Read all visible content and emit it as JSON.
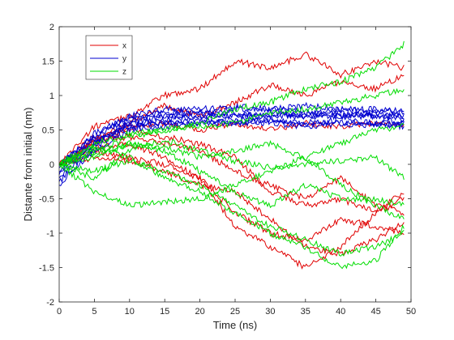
{
  "chart_data": {
    "type": "line",
    "title": "",
    "xlabel": "Time (ns)",
    "ylabel": "Distante from initial (nm)",
    "xlim": [
      0,
      50
    ],
    "ylim": [
      -2,
      2
    ],
    "xticks": [
      "0",
      "5",
      "10",
      "15",
      "20",
      "25",
      "30",
      "35",
      "40",
      "45",
      "50"
    ],
    "yticks": [
      "-2",
      "-1.5",
      "-1",
      "-0.5",
      "0",
      "0.5",
      "1",
      "1.5",
      "2"
    ],
    "grid": false,
    "legend_position": "top-left",
    "legend": [
      {
        "label": "x",
        "color": "#e00000"
      },
      {
        "label": "y",
        "color": "#0000d0"
      },
      {
        "label": "z",
        "color": "#00dd00"
      }
    ],
    "series": [
      {
        "group": "x",
        "color": "#e00000",
        "x": [
          0,
          5,
          10,
          15,
          20,
          25,
          30,
          35,
          40,
          45,
          49
        ],
        "y": [
          0,
          0.55,
          0.7,
          1.0,
          1.1,
          1.5,
          1.4,
          1.6,
          1.3,
          1.5,
          1.4
        ]
      },
      {
        "group": "x",
        "color": "#e00000",
        "x": [
          0,
          5,
          10,
          15,
          20,
          25,
          30,
          35,
          40,
          45,
          49
        ],
        "y": [
          0,
          0.35,
          0.6,
          0.85,
          0.7,
          0.9,
          1.15,
          1.0,
          1.2,
          1.1,
          1.3
        ]
      },
      {
        "group": "x",
        "color": "#e00000",
        "x": [
          0,
          5,
          10,
          15,
          20,
          25,
          30,
          35,
          40,
          45,
          49
        ],
        "y": [
          0,
          0.3,
          0.55,
          0.6,
          0.5,
          0.6,
          0.5,
          0.6,
          0.55,
          0.6,
          0.55
        ]
      },
      {
        "group": "x",
        "color": "#e00000",
        "x": [
          0,
          5,
          10,
          15,
          20,
          25,
          30,
          35,
          40,
          45,
          49
        ],
        "y": [
          0,
          0.2,
          0.1,
          0.0,
          -0.2,
          -0.7,
          -1.0,
          -1.1,
          -0.8,
          -0.9,
          -1.0
        ]
      },
      {
        "group": "x",
        "color": "#e00000",
        "x": [
          0,
          5,
          10,
          15,
          20,
          25,
          30,
          35,
          40,
          45,
          49
        ],
        "y": [
          0,
          0.25,
          0.3,
          0.1,
          -0.2,
          -0.9,
          -1.2,
          -1.5,
          -1.2,
          -0.7,
          -0.5
        ]
      },
      {
        "group": "x",
        "color": "#e00000",
        "x": [
          0,
          5,
          10,
          15,
          20,
          25,
          30,
          35,
          40,
          45,
          49
        ],
        "y": [
          0,
          0.4,
          0.5,
          0.4,
          0.3,
          0.1,
          -0.4,
          -0.6,
          -0.5,
          -0.7,
          -0.4
        ]
      },
      {
        "group": "x",
        "color": "#e00000",
        "x": [
          0,
          5,
          10,
          15,
          20,
          25,
          30,
          35,
          40,
          45,
          49
        ],
        "y": [
          0,
          0.1,
          0.05,
          -0.1,
          -0.3,
          -0.4,
          -0.8,
          -1.2,
          -1.3,
          -1.1,
          -0.85
        ]
      },
      {
        "group": "x",
        "color": "#e00000",
        "x": [
          0,
          5,
          10,
          15,
          20,
          25,
          30,
          35,
          40,
          45,
          49
        ],
        "y": [
          0,
          0.35,
          0.4,
          0.3,
          0.2,
          -0.1,
          -0.3,
          -0.5,
          -0.2,
          -0.6,
          -0.7
        ]
      },
      {
        "group": "y",
        "color": "#0000d0",
        "x": [
          0,
          5,
          10,
          15,
          20,
          25,
          30,
          35,
          40,
          45,
          49
        ],
        "y": [
          0,
          0.4,
          0.7,
          0.8,
          0.8,
          0.85,
          0.8,
          0.85,
          0.8,
          0.8,
          0.75
        ]
      },
      {
        "group": "y",
        "color": "#0000d0",
        "x": [
          0,
          5,
          10,
          15,
          20,
          25,
          30,
          35,
          40,
          45,
          49
        ],
        "y": [
          -0.2,
          0.3,
          0.6,
          0.65,
          0.7,
          0.7,
          0.75,
          0.7,
          0.75,
          0.7,
          0.7
        ]
      },
      {
        "group": "y",
        "color": "#0000d0",
        "x": [
          0,
          5,
          10,
          15,
          20,
          25,
          30,
          35,
          40,
          45,
          49
        ],
        "y": [
          -0.1,
          0.35,
          0.55,
          0.6,
          0.65,
          0.6,
          0.65,
          0.6,
          0.65,
          0.6,
          0.65
        ]
      },
      {
        "group": "y",
        "color": "#0000d0",
        "x": [
          0,
          5,
          10,
          15,
          20,
          25,
          30,
          35,
          40,
          45,
          49
        ],
        "y": [
          -0.25,
          0.2,
          0.5,
          0.55,
          0.6,
          0.6,
          0.6,
          0.55,
          0.6,
          0.55,
          0.6
        ]
      },
      {
        "group": "y",
        "color": "#0000d0",
        "x": [
          0,
          5,
          10,
          15,
          20,
          25,
          30,
          35,
          40,
          45,
          49
        ],
        "y": [
          0,
          0.4,
          0.65,
          0.75,
          0.75,
          0.8,
          0.8,
          0.75,
          0.8,
          0.75,
          0.8
        ]
      },
      {
        "group": "y",
        "color": "#0000d0",
        "x": [
          0,
          5,
          10,
          15,
          20,
          25,
          30,
          35,
          40,
          45,
          49
        ],
        "y": [
          -0.15,
          0.3,
          0.6,
          0.7,
          0.7,
          0.7,
          0.7,
          0.7,
          0.7,
          0.7,
          0.65
        ]
      },
      {
        "group": "y",
        "color": "#0000d0",
        "x": [
          0,
          5,
          10,
          15,
          20,
          25,
          30,
          35,
          40,
          45,
          49
        ],
        "y": [
          -0.05,
          0.45,
          0.7,
          0.7,
          0.75,
          0.75,
          0.7,
          0.75,
          0.7,
          0.75,
          0.7
        ]
      },
      {
        "group": "y",
        "color": "#0000d0",
        "x": [
          0,
          5,
          10,
          15,
          20,
          25,
          30,
          35,
          40,
          45,
          49
        ],
        "y": [
          -0.3,
          0.25,
          0.55,
          0.6,
          0.6,
          0.65,
          0.65,
          0.6,
          0.6,
          0.6,
          0.55
        ]
      },
      {
        "group": "z",
        "color": "#00dd00",
        "x": [
          0,
          5,
          10,
          15,
          20,
          25,
          30,
          35,
          40,
          45,
          49
        ],
        "y": [
          0,
          0.2,
          0.4,
          0.5,
          0.6,
          0.8,
          0.9,
          1.1,
          1.2,
          1.4,
          1.75
        ]
      },
      {
        "group": "z",
        "color": "#00dd00",
        "x": [
          0,
          5,
          10,
          15,
          20,
          25,
          30,
          35,
          40,
          45,
          49
        ],
        "y": [
          0,
          0.3,
          0.45,
          0.5,
          0.55,
          0.6,
          0.75,
          0.8,
          0.9,
          1.0,
          1.1
        ]
      },
      {
        "group": "z",
        "color": "#00dd00",
        "x": [
          0,
          5,
          10,
          15,
          20,
          25,
          30,
          35,
          40,
          45,
          49
        ],
        "y": [
          0,
          -0.4,
          -0.6,
          -0.55,
          -0.5,
          -0.3,
          -0.1,
          0.1,
          0.3,
          0.5,
          0.55
        ]
      },
      {
        "group": "z",
        "color": "#00dd00",
        "x": [
          0,
          5,
          10,
          15,
          20,
          25,
          30,
          35,
          40,
          45,
          49
        ],
        "y": [
          0,
          -0.2,
          0.2,
          0.35,
          0.2,
          0.05,
          -0.05,
          0.0,
          0.05,
          0.1,
          -0.2
        ]
      },
      {
        "group": "z",
        "color": "#00dd00",
        "x": [
          0,
          5,
          10,
          15,
          20,
          25,
          30,
          35,
          40,
          45,
          49
        ],
        "y": [
          0,
          0.1,
          0.3,
          0.2,
          -0.1,
          -0.4,
          -0.6,
          -0.3,
          -0.5,
          -0.5,
          -0.6
        ]
      },
      {
        "group": "z",
        "color": "#00dd00",
        "x": [
          0,
          5,
          10,
          15,
          20,
          25,
          30,
          35,
          40,
          45,
          49
        ],
        "y": [
          0,
          0.25,
          0.1,
          -0.2,
          -0.4,
          -0.7,
          -1.0,
          -1.2,
          -1.5,
          -1.4,
          -0.9
        ]
      },
      {
        "group": "z",
        "color": "#00dd00",
        "x": [
          0,
          5,
          10,
          15,
          20,
          25,
          30,
          35,
          40,
          45,
          49
        ],
        "y": [
          0,
          0.15,
          0.3,
          0.25,
          0.1,
          0.2,
          0.3,
          0.1,
          -0.3,
          -0.6,
          -0.8
        ]
      },
      {
        "group": "z",
        "color": "#00dd00",
        "x": [
          0,
          5,
          10,
          15,
          20,
          25,
          30,
          35,
          40,
          45,
          49
        ],
        "y": [
          0,
          -0.1,
          0.05,
          -0.1,
          -0.3,
          -0.6,
          -0.9,
          -1.1,
          -1.3,
          -1.2,
          -1.0
        ]
      }
    ]
  }
}
